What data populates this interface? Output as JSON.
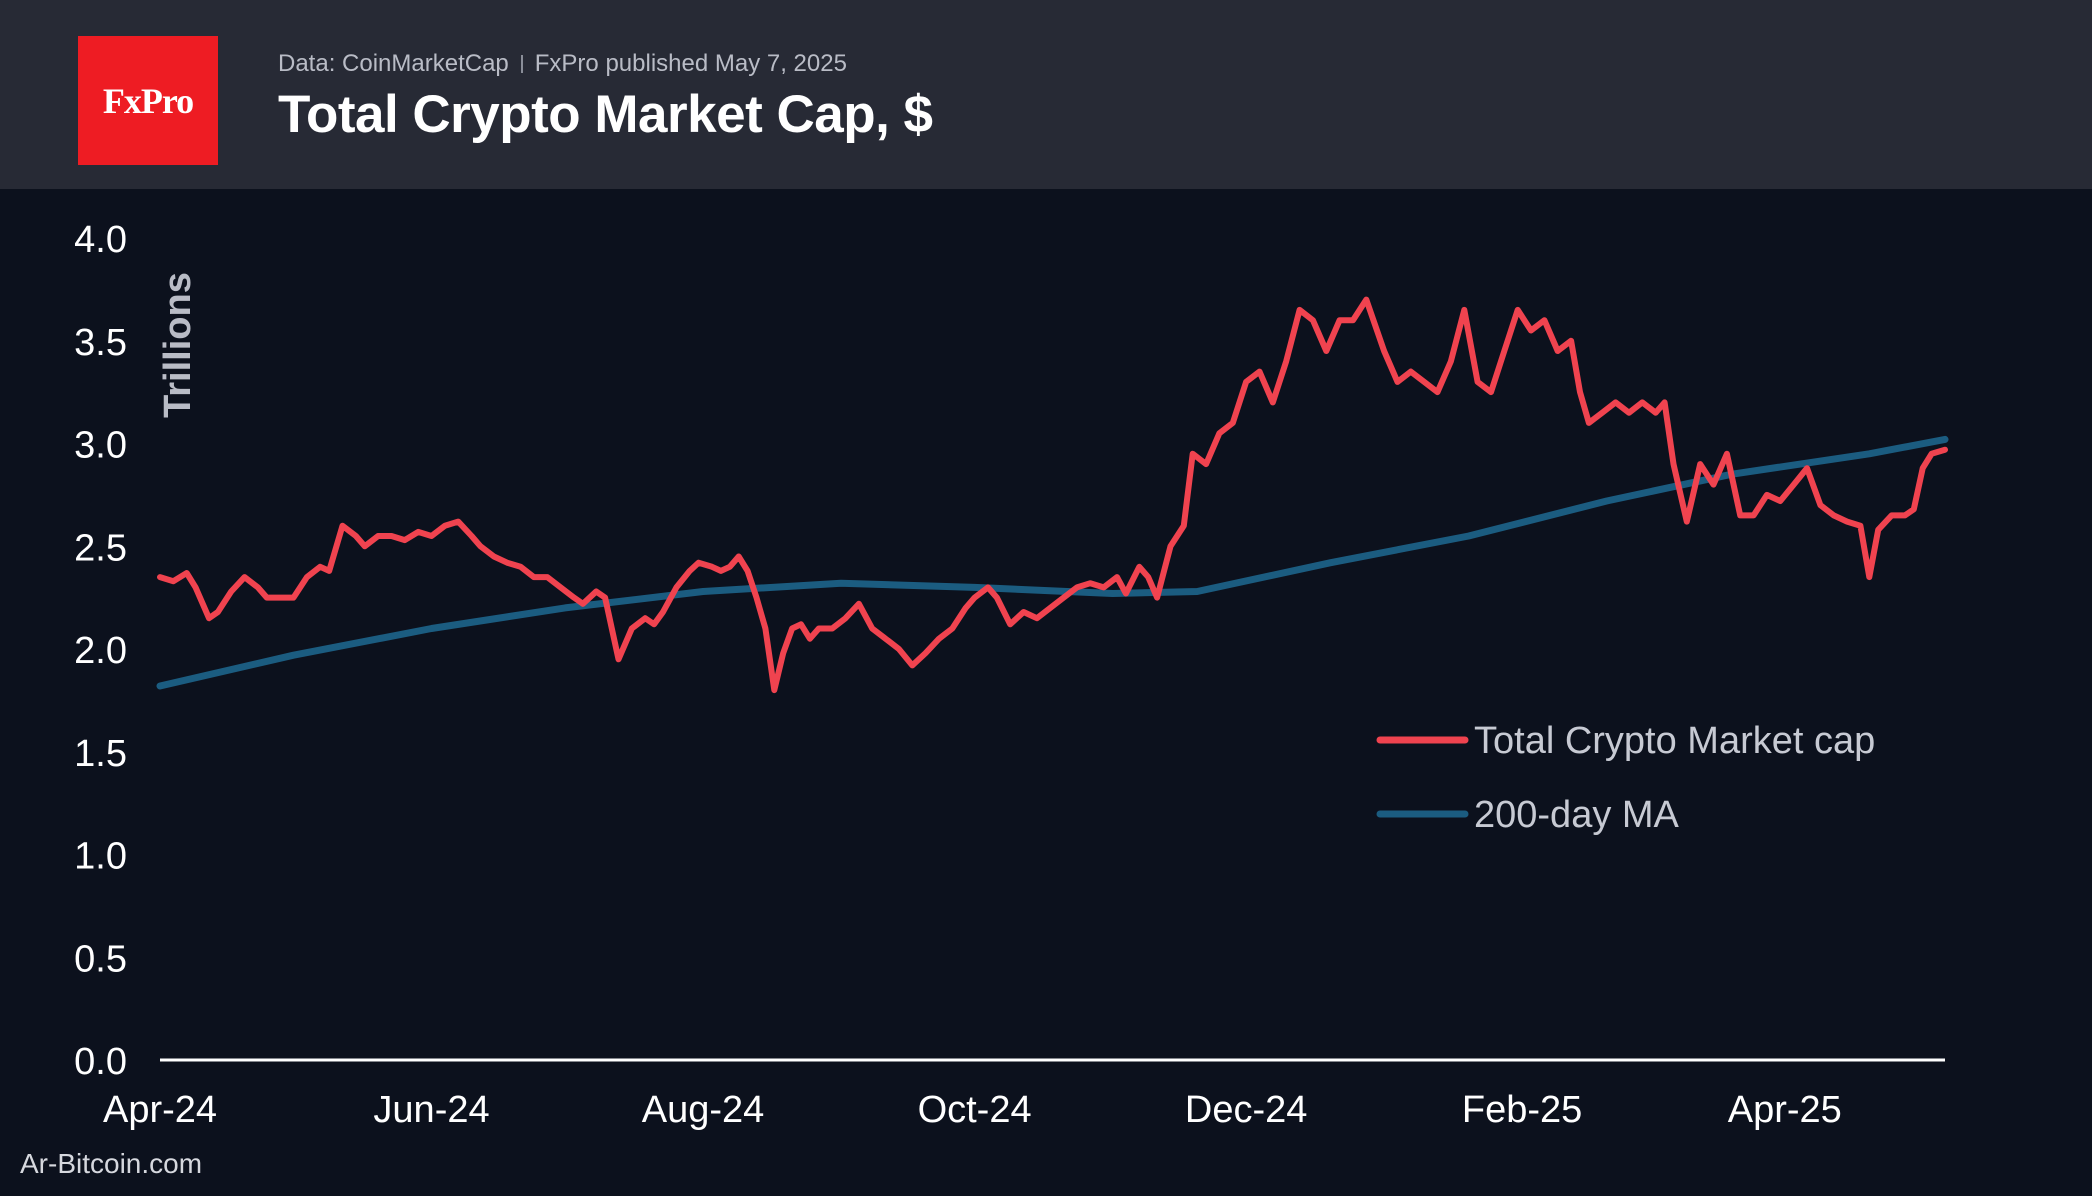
{
  "header": {
    "logo_text": "FxPro",
    "source": "Data: CoinMarketCap",
    "published": "FxPro published May 7, 2025",
    "title": "Total Crypto Market Cap, $"
  },
  "footer": {
    "credit": "Ar-Bitcoin.com"
  },
  "colors": {
    "background": "#0c111d",
    "header": "#272a35",
    "logo": "#ee1c23",
    "market_cap": "#f0434f",
    "ma200": "#1b5c80"
  },
  "chart_data": {
    "type": "line",
    "title": "Total Crypto Market Cap, $",
    "ylabel": "Trillions",
    "xlabel": "",
    "ylim": [
      0,
      4
    ],
    "yticks": [
      "0.0",
      "0.5",
      "1.0",
      "1.5",
      "2.0",
      "2.5",
      "3.0",
      "3.5",
      "4.0"
    ],
    "xlim": [
      "2024-04-01",
      "2025-05-07"
    ],
    "xticks": [
      {
        "date": "2024-04-01",
        "label": "Apr-24"
      },
      {
        "date": "2024-06-01",
        "label": "Jun-24"
      },
      {
        "date": "2024-08-01",
        "label": "Aug-24"
      },
      {
        "date": "2024-10-01",
        "label": "Oct-24"
      },
      {
        "date": "2024-12-01",
        "label": "Dec-24"
      },
      {
        "date": "2025-02-01",
        "label": "Feb-25"
      },
      {
        "date": "2025-04-01",
        "label": "Apr-25"
      }
    ],
    "grid": false,
    "legend": "right",
    "series": [
      {
        "name": "Total Crypto Market cap",
        "color": "#f0434f",
        "points": [
          [
            "2024-04-01",
            2.35
          ],
          [
            "2024-04-04",
            2.33
          ],
          [
            "2024-04-07",
            2.37
          ],
          [
            "2024-04-09",
            2.3
          ],
          [
            "2024-04-12",
            2.15
          ],
          [
            "2024-04-14",
            2.18
          ],
          [
            "2024-04-17",
            2.28
          ],
          [
            "2024-04-20",
            2.35
          ],
          [
            "2024-04-23",
            2.3
          ],
          [
            "2024-04-25",
            2.25
          ],
          [
            "2024-04-28",
            2.25
          ],
          [
            "2024-05-01",
            2.25
          ],
          [
            "2024-05-04",
            2.35
          ],
          [
            "2024-05-07",
            2.4
          ],
          [
            "2024-05-09",
            2.38
          ],
          [
            "2024-05-12",
            2.6
          ],
          [
            "2024-05-15",
            2.55
          ],
          [
            "2024-05-17",
            2.5
          ],
          [
            "2024-05-20",
            2.55
          ],
          [
            "2024-05-23",
            2.55
          ],
          [
            "2024-05-26",
            2.53
          ],
          [
            "2024-05-29",
            2.57
          ],
          [
            "2024-06-01",
            2.55
          ],
          [
            "2024-06-04",
            2.6
          ],
          [
            "2024-06-07",
            2.62
          ],
          [
            "2024-06-10",
            2.55
          ],
          [
            "2024-06-12",
            2.5
          ],
          [
            "2024-06-15",
            2.45
          ],
          [
            "2024-06-18",
            2.42
          ],
          [
            "2024-06-21",
            2.4
          ],
          [
            "2024-06-24",
            2.35
          ],
          [
            "2024-06-27",
            2.35
          ],
          [
            "2024-06-30",
            2.3
          ],
          [
            "2024-07-03",
            2.25
          ],
          [
            "2024-07-05",
            2.22
          ],
          [
            "2024-07-08",
            2.28
          ],
          [
            "2024-07-10",
            2.25
          ],
          [
            "2024-07-13",
            1.95
          ],
          [
            "2024-07-16",
            2.1
          ],
          [
            "2024-07-19",
            2.15
          ],
          [
            "2024-07-21",
            2.12
          ],
          [
            "2024-07-23",
            2.18
          ],
          [
            "2024-07-26",
            2.3
          ],
          [
            "2024-07-29",
            2.38
          ],
          [
            "2024-07-31",
            2.42
          ],
          [
            "2024-08-03",
            2.4
          ],
          [
            "2024-08-05",
            2.38
          ],
          [
            "2024-08-07",
            2.4
          ],
          [
            "2024-08-09",
            2.45
          ],
          [
            "2024-08-11",
            2.38
          ],
          [
            "2024-08-13",
            2.25
          ],
          [
            "2024-08-15",
            2.1
          ],
          [
            "2024-08-17",
            1.8
          ],
          [
            "2024-08-19",
            1.98
          ],
          [
            "2024-08-21",
            2.1
          ],
          [
            "2024-08-23",
            2.12
          ],
          [
            "2024-08-25",
            2.05
          ],
          [
            "2024-08-27",
            2.1
          ],
          [
            "2024-08-30",
            2.1
          ],
          [
            "2024-09-02",
            2.15
          ],
          [
            "2024-09-05",
            2.22
          ],
          [
            "2024-09-08",
            2.1
          ],
          [
            "2024-09-11",
            2.05
          ],
          [
            "2024-09-14",
            2.0
          ],
          [
            "2024-09-17",
            1.92
          ],
          [
            "2024-09-20",
            1.98
          ],
          [
            "2024-09-23",
            2.05
          ],
          [
            "2024-09-26",
            2.1
          ],
          [
            "2024-09-29",
            2.2
          ],
          [
            "2024-10-01",
            2.25
          ],
          [
            "2024-10-04",
            2.3
          ],
          [
            "2024-10-06",
            2.25
          ],
          [
            "2024-10-09",
            2.12
          ],
          [
            "2024-10-12",
            2.18
          ],
          [
            "2024-10-15",
            2.15
          ],
          [
            "2024-10-18",
            2.2
          ],
          [
            "2024-10-21",
            2.25
          ],
          [
            "2024-10-24",
            2.3
          ],
          [
            "2024-10-27",
            2.32
          ],
          [
            "2024-10-30",
            2.3
          ],
          [
            "2024-11-02",
            2.35
          ],
          [
            "2024-11-04",
            2.27
          ],
          [
            "2024-11-07",
            2.4
          ],
          [
            "2024-11-09",
            2.35
          ],
          [
            "2024-11-11",
            2.25
          ],
          [
            "2024-11-14",
            2.5
          ],
          [
            "2024-11-17",
            2.6
          ],
          [
            "2024-11-19",
            2.95
          ],
          [
            "2024-11-22",
            2.9
          ],
          [
            "2024-11-25",
            3.05
          ],
          [
            "2024-11-28",
            3.1
          ],
          [
            "2024-12-01",
            3.3
          ],
          [
            "2024-12-04",
            3.35
          ],
          [
            "2024-12-07",
            3.2
          ],
          [
            "2024-12-10",
            3.4
          ],
          [
            "2024-12-13",
            3.65
          ],
          [
            "2024-12-16",
            3.6
          ],
          [
            "2024-12-19",
            3.45
          ],
          [
            "2024-12-22",
            3.6
          ],
          [
            "2024-12-25",
            3.6
          ],
          [
            "2024-12-28",
            3.7
          ],
          [
            "2025-01-01",
            3.45
          ],
          [
            "2025-01-04",
            3.3
          ],
          [
            "2025-01-07",
            3.35
          ],
          [
            "2025-01-10",
            3.3
          ],
          [
            "2025-01-13",
            3.25
          ],
          [
            "2025-01-16",
            3.4
          ],
          [
            "2025-01-19",
            3.65
          ],
          [
            "2025-01-22",
            3.3
          ],
          [
            "2025-01-25",
            3.25
          ],
          [
            "2025-01-28",
            3.45
          ],
          [
            "2025-01-31",
            3.65
          ],
          [
            "2025-02-03",
            3.55
          ],
          [
            "2025-02-06",
            3.6
          ],
          [
            "2025-02-09",
            3.45
          ],
          [
            "2025-02-12",
            3.5
          ],
          [
            "2025-02-14",
            3.25
          ],
          [
            "2025-02-16",
            3.1
          ],
          [
            "2025-02-19",
            3.15
          ],
          [
            "2025-02-22",
            3.2
          ],
          [
            "2025-02-25",
            3.15
          ],
          [
            "2025-02-28",
            3.2
          ],
          [
            "2025-03-03",
            3.15
          ],
          [
            "2025-03-05",
            3.2
          ],
          [
            "2025-03-07",
            2.9
          ],
          [
            "2025-03-10",
            2.62
          ],
          [
            "2025-03-13",
            2.9
          ],
          [
            "2025-03-16",
            2.8
          ],
          [
            "2025-03-19",
            2.95
          ],
          [
            "2025-03-22",
            2.65
          ],
          [
            "2025-03-25",
            2.65
          ],
          [
            "2025-03-28",
            2.75
          ],
          [
            "2025-03-31",
            2.72
          ],
          [
            "2025-04-03",
            2.8
          ],
          [
            "2025-04-06",
            2.88
          ],
          [
            "2025-04-09",
            2.7
          ],
          [
            "2025-04-12",
            2.65
          ],
          [
            "2025-04-15",
            2.62
          ],
          [
            "2025-04-18",
            2.6
          ],
          [
            "2025-04-20",
            2.35
          ],
          [
            "2025-04-22",
            2.58
          ],
          [
            "2025-04-25",
            2.65
          ],
          [
            "2025-04-28",
            2.65
          ],
          [
            "2025-04-30",
            2.68
          ],
          [
            "2025-05-02",
            2.88
          ],
          [
            "2025-05-04",
            2.95
          ],
          [
            "2025-05-07",
            2.97
          ]
        ]
      },
      {
        "name": "200-day MA",
        "color": "#1b5c80",
        "points": [
          [
            "2024-04-01",
            1.82
          ],
          [
            "2024-05-01",
            1.97
          ],
          [
            "2024-06-01",
            2.1
          ],
          [
            "2024-07-01",
            2.2
          ],
          [
            "2024-08-01",
            2.28
          ],
          [
            "2024-09-01",
            2.32
          ],
          [
            "2024-10-01",
            2.3
          ],
          [
            "2024-11-01",
            2.27
          ],
          [
            "2024-11-20",
            2.28
          ],
          [
            "2024-12-20",
            2.42
          ],
          [
            "2025-01-20",
            2.55
          ],
          [
            "2025-02-20",
            2.72
          ],
          [
            "2025-03-20",
            2.85
          ],
          [
            "2025-04-20",
            2.95
          ],
          [
            "2025-05-07",
            3.02
          ]
        ]
      }
    ]
  }
}
